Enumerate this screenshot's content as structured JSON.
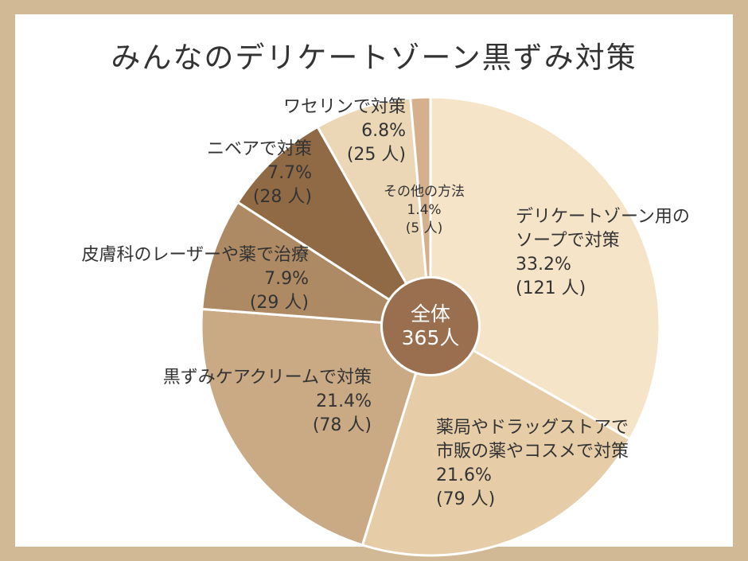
{
  "chart_data": {
    "type": "pie",
    "title": "みんなのデリケートゾーン黒ずみ対策",
    "total_label": "全体",
    "total_value": "365人",
    "slices": [
      {
        "line1": "デリケートゾーン用の",
        "line2": "ソープで対策",
        "percent": 33.2,
        "percent_text": "33.2%",
        "count_text": "(121 人)",
        "color": "#f6e4c8"
      },
      {
        "line1": "薬局やドラッグストアで",
        "line2": "市販の薬やコスメで対策",
        "percent": 21.6,
        "percent_text": "21.6%",
        "count_text": "(79 人)",
        "color": "#e6cca7"
      },
      {
        "line1": "黒ずみケアクリームで対策",
        "percent": 21.4,
        "percent_text": "21.4%",
        "count_text": "(78 人)",
        "color": "#caa985"
      },
      {
        "line1": "皮膚科のレーザーや薬で治療",
        "percent": 7.9,
        "percent_text": "7.9%",
        "count_text": "(29 人)",
        "color": "#ae8a64"
      },
      {
        "line1": "ニベアで対策",
        "percent": 7.7,
        "percent_text": "7.7%",
        "count_text": "(28 人)",
        "color": "#8f6a45"
      },
      {
        "line1": "ワセリンで対策",
        "percent": 6.8,
        "percent_text": "6.8%",
        "count_text": "(25 人)",
        "color": "#ebd6b6"
      },
      {
        "line1": "その他の方法",
        "percent": 1.4,
        "percent_text": "1.4%",
        "count_text": "(5 人)",
        "color": "#d4b08c"
      }
    ]
  }
}
